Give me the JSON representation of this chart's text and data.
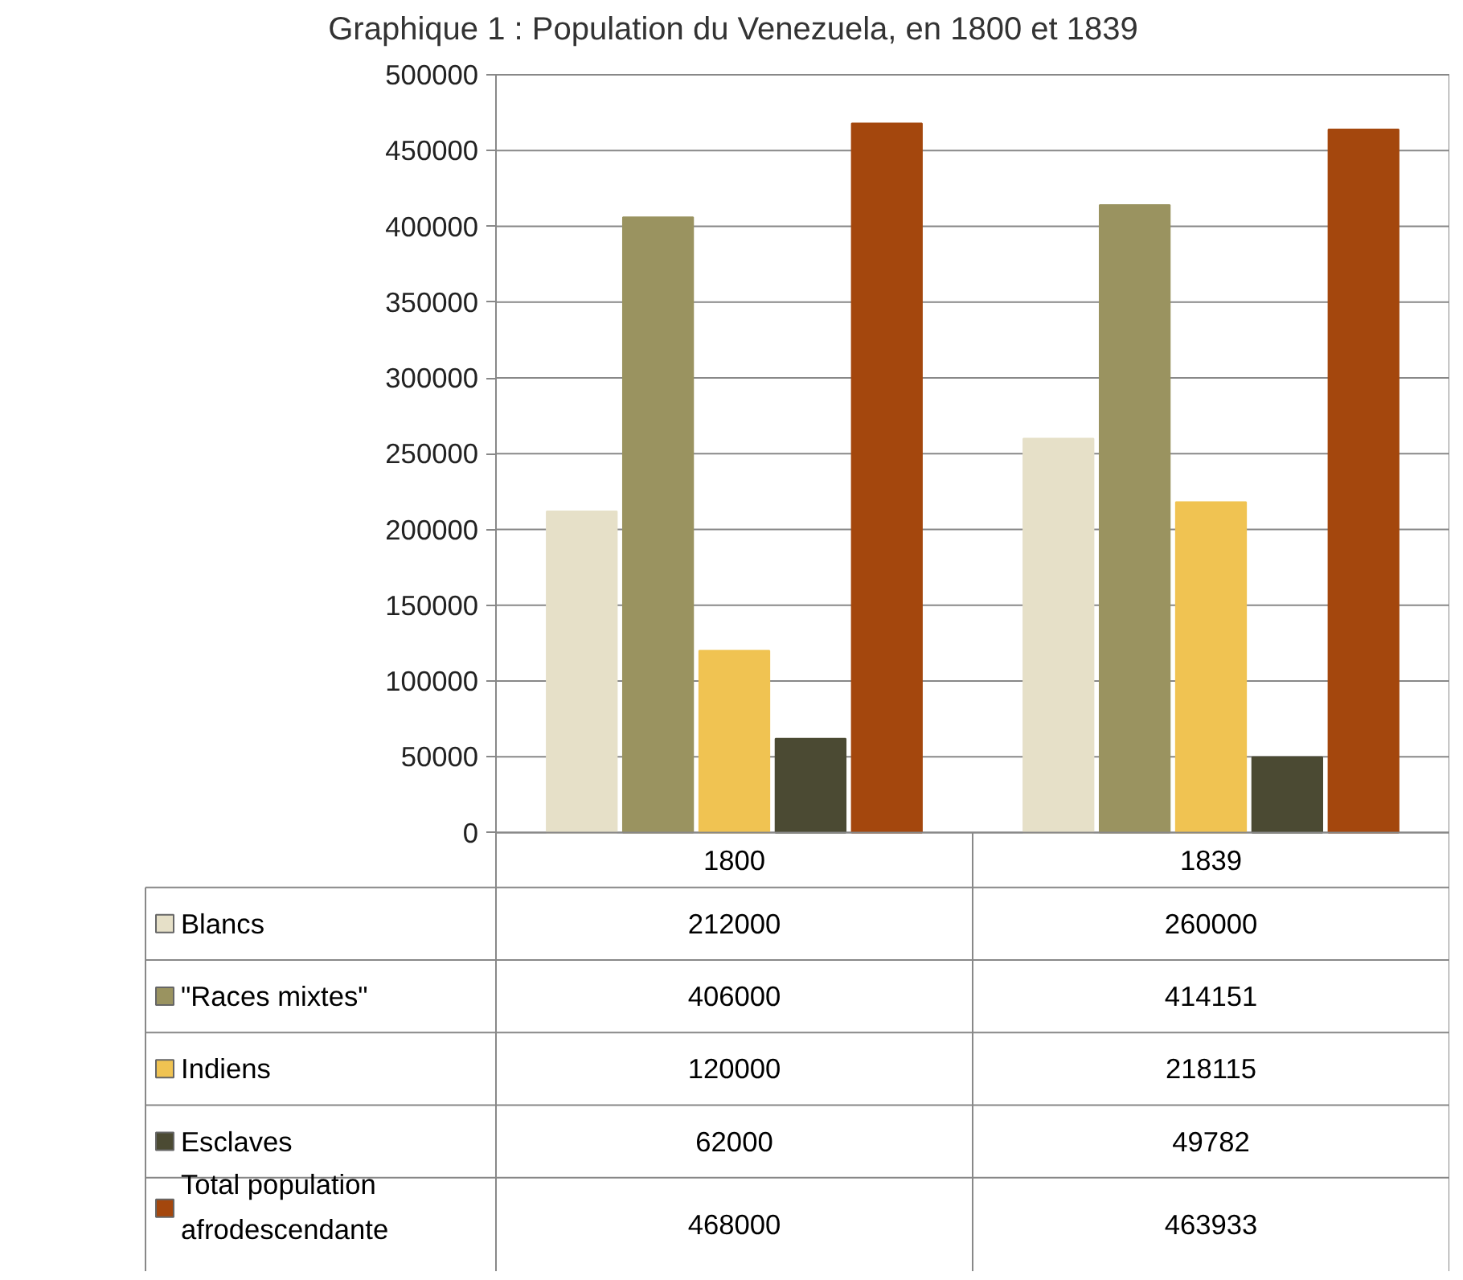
{
  "chart_data": {
    "type": "bar",
    "title": "Graphique 1 : Population du Venezuela, en 1800 et 1839",
    "categories": [
      "1800",
      "1839"
    ],
    "series": [
      {
        "name": "Blancs",
        "color": "#e6e0c8",
        "values": [
          212000,
          260000
        ]
      },
      {
        "name": "\"Races mixtes\"",
        "color": "#9a9360",
        "values": [
          406000,
          414151
        ]
      },
      {
        "name": "Indiens",
        "color": "#f0c352",
        "values": [
          120000,
          218115
        ]
      },
      {
        "name": "Esclaves",
        "color": "#4b4a33",
        "values": [
          62000,
          49782
        ]
      },
      {
        "name": "Total population afrodescendante",
        "color": "#a4470d",
        "values": [
          468000,
          463933
        ]
      }
    ],
    "ylim": [
      0,
      500000
    ],
    "yticks": [
      0,
      50000,
      100000,
      150000,
      200000,
      250000,
      300000,
      350000,
      400000,
      450000,
      500000
    ],
    "grid": "y",
    "data_labels": true,
    "legend": "bottom left"
  }
}
